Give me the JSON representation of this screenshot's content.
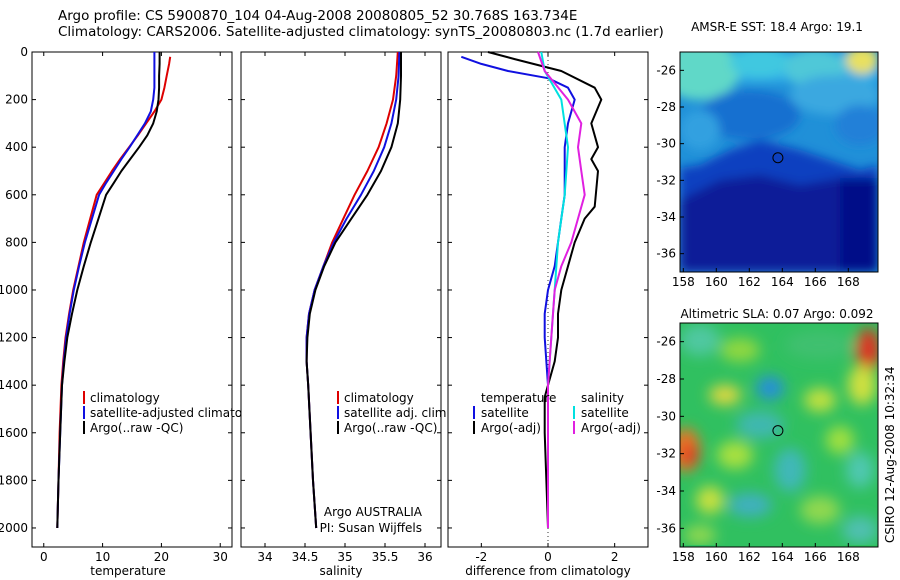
{
  "header": {
    "line1": "Argo profile: CS 5900870_104 04-Aug-2008 20080805_52 30.768S 163.734E",
    "line2": "Climatology: CARS2006. Satellite-adjusted climatology: synTS_20080803.nc (1.7d earlier)"
  },
  "colors": {
    "climatology": "#dd0000",
    "satellite": "#1010e0",
    "argo": "#000000",
    "satellite_salinity": "#00e0e0",
    "argo_adj_salinity": "#e020e0"
  },
  "credit": {
    "line1": "Argo AUSTRALIA",
    "line2": "PI: Susan Wijffels",
    "side": "CSIRO 12-Aug-2008 10:32:34"
  },
  "chart_data": [
    {
      "type": "line",
      "name": "temperature_profile",
      "xlabel": "temperature",
      "ylabel": "",
      "xlim": [
        -2,
        32
      ],
      "ylim": [
        2080,
        0
      ],
      "y_inverted": true,
      "xticks": [
        0,
        10,
        20,
        30
      ],
      "yticks": [
        0,
        200,
        400,
        600,
        800,
        1000,
        1200,
        1400,
        1600,
        1800,
        2000
      ],
      "legend": [
        "climatology",
        "satellite-adjusted climatology",
        "Argo(..raw -QC)"
      ],
      "legend_position": "lower-right",
      "series": [
        {
          "name": "climatology",
          "color": "#dd0000",
          "x": [
            21.5,
            21.3,
            20.9,
            20.5,
            20.0,
            18.8,
            17.4,
            16.0,
            14.5,
            13.0,
            11.6,
            10.3,
            9.0,
            7.9,
            6.8,
            5.9,
            5.0,
            4.3,
            3.7,
            3.3,
            3.0,
            2.7,
            2.5,
            2.3
          ],
          "y": [
            20,
            50,
            100,
            150,
            200,
            250,
            300,
            350,
            400,
            450,
            500,
            550,
            600,
            700,
            800,
            900,
            1000,
            1100,
            1200,
            1300,
            1400,
            1600,
            1800,
            2000
          ]
        },
        {
          "name": "satellite-adjusted climatology",
          "color": "#1010e0",
          "x": [
            18.8,
            18.8,
            18.8,
            18.8,
            18.6,
            18.2,
            17.2,
            15.9,
            14.6,
            13.2,
            11.9,
            10.6,
            9.4,
            8.2,
            7.0,
            6.0,
            5.1,
            4.4,
            3.8,
            3.4,
            3.1,
            2.8,
            2.5,
            2.3
          ],
          "y": [
            0,
            50,
            100,
            150,
            200,
            250,
            300,
            350,
            400,
            450,
            500,
            550,
            600,
            700,
            800,
            900,
            1000,
            1100,
            1200,
            1300,
            1400,
            1600,
            1800,
            2000
          ]
        },
        {
          "name": "Argo(..raw -QC)",
          "color": "#000000",
          "x": [
            19.7,
            19.7,
            19.6,
            19.6,
            19.5,
            19.2,
            18.6,
            17.6,
            16.2,
            14.7,
            13.2,
            11.9,
            10.6,
            9.3,
            8.0,
            6.8,
            5.7,
            4.8,
            4.0,
            3.5,
            3.1,
            2.8,
            2.5,
            2.3
          ],
          "y": [
            0,
            50,
            100,
            150,
            200,
            250,
            300,
            350,
            400,
            450,
            500,
            550,
            600,
            700,
            800,
            900,
            1000,
            1100,
            1200,
            1300,
            1400,
            1600,
            1800,
            2000
          ]
        }
      ]
    },
    {
      "type": "line",
      "name": "salinity_profile",
      "xlabel": "salinity",
      "ylabel": "",
      "xlim": [
        33.7,
        36.2
      ],
      "ylim": [
        2080,
        0
      ],
      "y_inverted": true,
      "xticks": [
        34,
        34.5,
        35,
        35.5,
        36
      ],
      "legend": [
        "climatology",
        "satellite adj. clim.",
        "Argo(..raw -QC)"
      ],
      "legend_position": "lower-right",
      "series": [
        {
          "name": "climatology",
          "color": "#dd0000",
          "x": [
            35.66,
            35.64,
            35.6,
            35.52,
            35.42,
            35.28,
            35.12,
            34.98,
            34.84,
            34.73,
            34.62,
            34.55,
            34.52,
            34.52,
            34.54,
            34.57,
            34.6,
            34.62,
            34.64
          ],
          "y": [
            0,
            100,
            200,
            300,
            400,
            500,
            600,
            700,
            800,
            900,
            1000,
            1100,
            1200,
            1300,
            1400,
            1600,
            1800,
            1900,
            2000
          ]
        },
        {
          "name": "satellite adj. clim.",
          "color": "#1010e0",
          "x": [
            35.68,
            35.67,
            35.64,
            35.58,
            35.49,
            35.36,
            35.2,
            35.02,
            34.86,
            34.73,
            34.62,
            34.55,
            34.52,
            34.52,
            34.54,
            34.57,
            34.6,
            34.62,
            34.64
          ],
          "y": [
            0,
            100,
            200,
            300,
            400,
            500,
            600,
            700,
            800,
            900,
            1000,
            1100,
            1200,
            1300,
            1400,
            1600,
            1800,
            1900,
            2000
          ]
        },
        {
          "name": "Argo(..raw -QC)",
          "color": "#000000",
          "x": [
            35.7,
            35.7,
            35.69,
            35.66,
            35.58,
            35.45,
            35.28,
            35.08,
            34.88,
            34.74,
            34.63,
            34.56,
            34.53,
            34.52,
            34.54,
            34.57,
            34.6,
            34.62,
            34.64
          ],
          "y": [
            0,
            100,
            200,
            300,
            400,
            500,
            600,
            700,
            800,
            900,
            1000,
            1100,
            1200,
            1300,
            1400,
            1600,
            1800,
            1900,
            2000
          ]
        }
      ]
    },
    {
      "type": "line",
      "name": "difference_profile",
      "xlabel": "difference from climatology",
      "ylabel": "",
      "xlim": [
        -3,
        3
      ],
      "ylim": [
        2080,
        0
      ],
      "y_inverted": true,
      "xticks": [
        -2,
        0,
        2
      ],
      "legend_titles": [
        "temperature",
        "salinity"
      ],
      "legend": [
        "satellite",
        "Argo(-adj)",
        "satellite",
        "Argo(-adj)"
      ],
      "legend_position": "lower",
      "series": [
        {
          "name": "temperature satellite",
          "color": "#1010e0",
          "x": [
            -2.6,
            -2.0,
            -1.2,
            0.0,
            0.6,
            0.8,
            0.6,
            0.5,
            0.5,
            0.5,
            0.4,
            0.3,
            0.2,
            0.0,
            -0.1,
            -0.1,
            0.0,
            0.0,
            0.0
          ],
          "y": [
            20,
            50,
            80,
            110,
            150,
            200,
            300,
            400,
            500,
            600,
            700,
            800,
            900,
            1000,
            1100,
            1200,
            1400,
            1600,
            2000
          ]
        },
        {
          "name": "temperature Argo(-adj)",
          "color": "#000000",
          "x": [
            -1.8,
            -1.0,
            0.4,
            1.4,
            1.6,
            1.3,
            1.5,
            1.3,
            1.5,
            1.4,
            1.1,
            0.8,
            0.6,
            0.4,
            0.3,
            0.3,
            0.2,
            0.0,
            -0.1,
            -0.1,
            0.0
          ],
          "y": [
            0,
            30,
            80,
            150,
            200,
            300,
            400,
            450,
            500,
            650,
            700,
            800,
            900,
            1000,
            1100,
            1200,
            1300,
            1400,
            1450,
            1600,
            2000
          ]
        },
        {
          "name": "salinity satellite",
          "color": "#00e0e0",
          "x": [
            -0.2,
            -0.1,
            0.4,
            0.6,
            0.5,
            0.3,
            0.2,
            0.1,
            0.0,
            0.0,
            0.0,
            0.0
          ],
          "y": [
            0,
            80,
            200,
            400,
            600,
            800,
            1000,
            1200,
            1400,
            1600,
            1800,
            2000
          ]
        },
        {
          "name": "salinity Argo(-adj)",
          "color": "#e020e0",
          "x": [
            -0.3,
            -0.1,
            0.6,
            1.0,
            0.9,
            1.0,
            1.1,
            0.9,
            0.7,
            0.4,
            0.2,
            0.1,
            0.0,
            0.0,
            0.0
          ],
          "y": [
            0,
            80,
            200,
            300,
            400,
            500,
            600,
            700,
            800,
            900,
            1000,
            1200,
            1400,
            1600,
            2000
          ]
        }
      ]
    },
    {
      "type": "heatmap",
      "name": "sst_map",
      "title": "AMSR-E SST: 18.4 Argo: 19.1",
      "xlim": [
        157.8,
        169.8
      ],
      "ylim": [
        -37,
        -25
      ],
      "xticks": [
        158,
        160,
        162,
        164,
        166,
        168
      ],
      "yticks": [
        -26,
        -28,
        -30,
        -32,
        -34,
        -36
      ],
      "marker": {
        "lon": 163.734,
        "lat": -30.768
      }
    },
    {
      "type": "heatmap",
      "name": "sla_map",
      "title": "Altimetric SLA: 0.07 Argo: 0.092",
      "xlim": [
        157.8,
        169.8
      ],
      "ylim": [
        -37,
        -25
      ],
      "xticks": [
        158,
        160,
        162,
        164,
        166,
        168
      ],
      "yticks": [
        -26,
        -28,
        -30,
        -32,
        -34,
        -36
      ],
      "marker": {
        "lon": 163.734,
        "lat": -30.768
      }
    }
  ]
}
